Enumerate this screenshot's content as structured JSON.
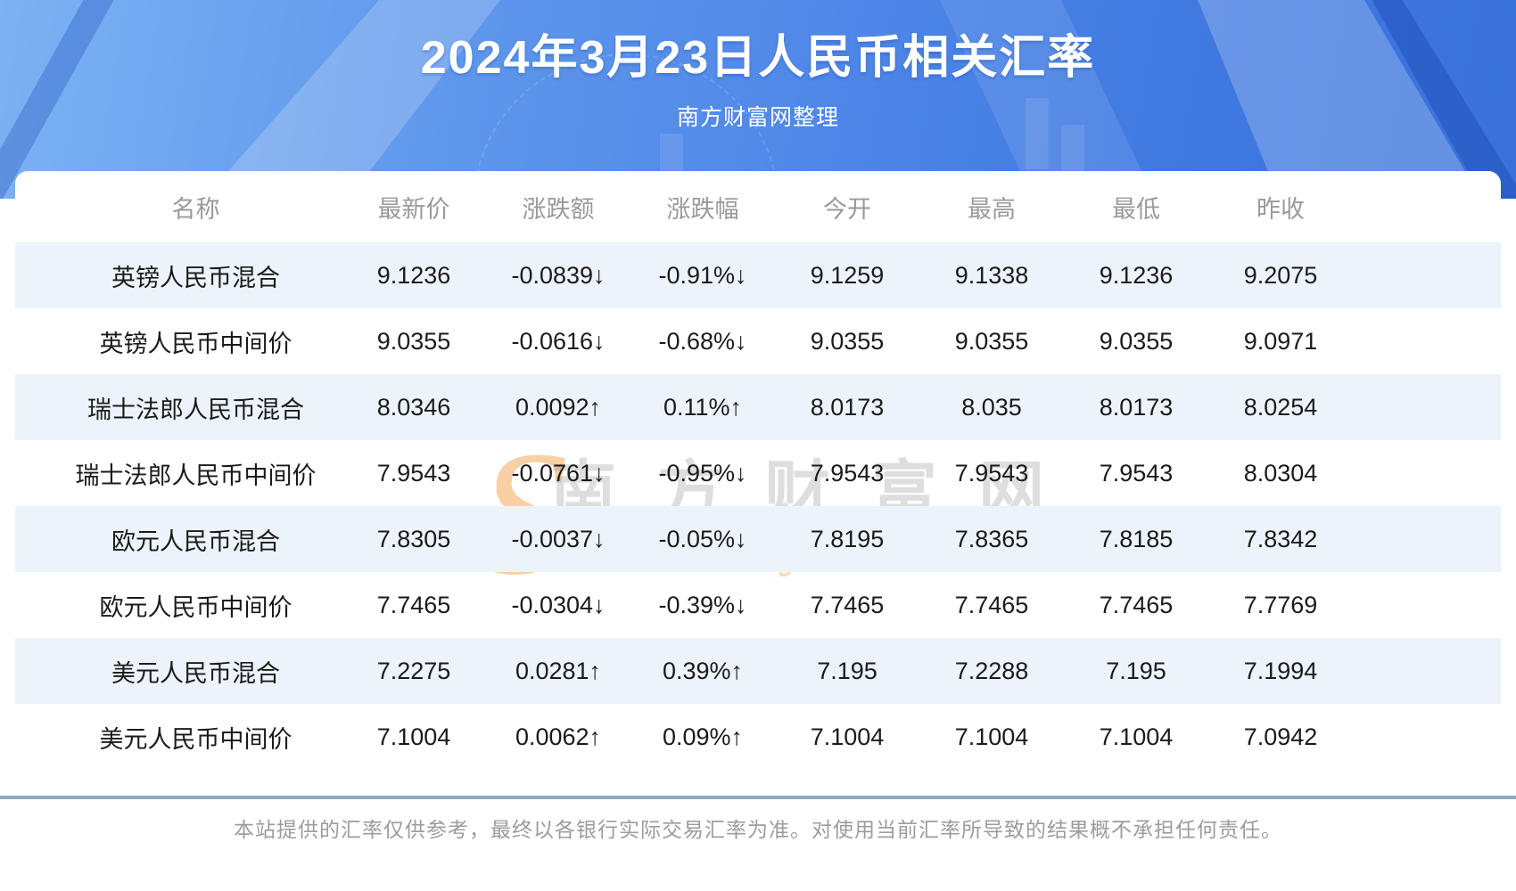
{
  "hero": {
    "title": "2024年3月23日人民币相关汇率",
    "subtitle": "南方财富网整理"
  },
  "watermark": {
    "big_s": "S",
    "cn_text": "南方财富网",
    "en_text": "outhmoney.com"
  },
  "table": {
    "columns": [
      "名称",
      "最新价",
      "涨跌额",
      "涨跌幅",
      "今开",
      "最高",
      "最低",
      "昨收"
    ],
    "rows": [
      {
        "name": "英镑人民币混合",
        "trend": "down",
        "latest": "9.1236",
        "change": "-0.0839↓",
        "change_pct": "-0.91%↓",
        "open": "9.1259",
        "high": "9.1338",
        "low": "9.1236",
        "prev_close": "9.2075"
      },
      {
        "name": "英镑人民币中间价",
        "trend": "down",
        "latest": "9.0355",
        "change": "-0.0616↓",
        "change_pct": "-0.68%↓",
        "open": "9.0355",
        "high": "9.0355",
        "low": "9.0355",
        "prev_close": "9.0971"
      },
      {
        "name": "瑞士法郎人民币混合",
        "trend": "up",
        "latest": "8.0346",
        "change": "0.0092↑",
        "change_pct": "0.11%↑",
        "open": "8.0173",
        "high": "8.035",
        "low": "8.0173",
        "prev_close": "8.0254"
      },
      {
        "name": "瑞士法郎人民币中间价",
        "trend": "down",
        "latest": "7.9543",
        "change": "-0.0761↓",
        "change_pct": "-0.95%↓",
        "open": "7.9543",
        "high": "7.9543",
        "low": "7.9543",
        "prev_close": "8.0304"
      },
      {
        "name": "欧元人民币混合",
        "trend": "down",
        "latest": "7.8305",
        "change": "-0.0037↓",
        "change_pct": "-0.05%↓",
        "open": "7.8195",
        "high": "7.8365",
        "low": "7.8185",
        "prev_close": "7.8342"
      },
      {
        "name": "欧元人民币中间价",
        "trend": "down",
        "latest": "7.7465",
        "change": "-0.0304↓",
        "change_pct": "-0.39%↓",
        "open": "7.7465",
        "high": "7.7465",
        "low": "7.7465",
        "prev_close": "7.7769"
      },
      {
        "name": "美元人民币混合",
        "trend": "up",
        "latest": "7.2275",
        "change": "0.0281↑",
        "change_pct": "0.39%↑",
        "open": "7.195",
        "high": "7.2288",
        "low": "7.195",
        "prev_close": "7.1994"
      },
      {
        "name": "美元人民币中间价",
        "trend": "up",
        "latest": "7.1004",
        "change": "0.0062↑",
        "change_pct": "0.09%↑",
        "open": "7.1004",
        "high": "7.1004",
        "low": "7.1004",
        "prev_close": "7.0942"
      }
    ]
  },
  "footer": {
    "disclaimer": "本站提供的汇率仅供参考，最终以各银行实际交易汇率为准。对使用当前汇率所导致的结果概不承担任何责任。"
  },
  "colors": {
    "up_red": "#ee1c1c",
    "down_green": "#0d9417",
    "stripe_blue": "#edf3fb",
    "hero_blue_light": "#7db2f3",
    "hero_blue_dark": "#3a72da",
    "separator_gray_blue": "#8fa7c0",
    "header_text_gray": "#9a9a9a",
    "watermark_orange": "#f3a251"
  }
}
